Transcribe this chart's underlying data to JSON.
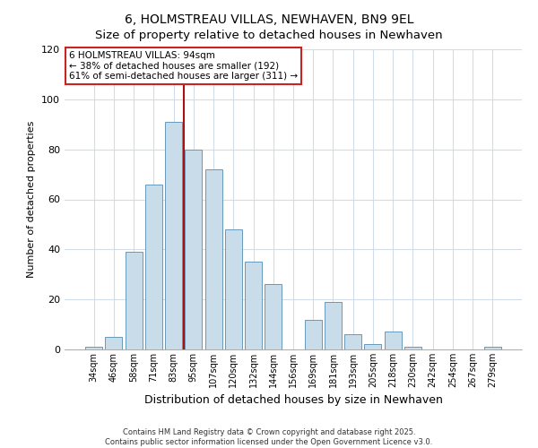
{
  "title": "6, HOLMSTREAU VILLAS, NEWHAVEN, BN9 9EL",
  "subtitle": "Size of property relative to detached houses in Newhaven",
  "xlabel": "Distribution of detached houses by size in Newhaven",
  "ylabel": "Number of detached properties",
  "bar_labels": [
    "34sqm",
    "46sqm",
    "58sqm",
    "71sqm",
    "83sqm",
    "95sqm",
    "107sqm",
    "120sqm",
    "132sqm",
    "144sqm",
    "156sqm",
    "169sqm",
    "181sqm",
    "193sqm",
    "205sqm",
    "218sqm",
    "230sqm",
    "242sqm",
    "254sqm",
    "267sqm",
    "279sqm"
  ],
  "bar_values": [
    1,
    5,
    39,
    66,
    91,
    80,
    72,
    48,
    35,
    26,
    0,
    12,
    19,
    6,
    2,
    7,
    1,
    0,
    0,
    0,
    1
  ],
  "bar_color": "#c9dcea",
  "bar_edge_color": "#6699bb",
  "ylim": [
    0,
    120
  ],
  "yticks": [
    0,
    20,
    40,
    60,
    80,
    100,
    120
  ],
  "vline_x_pos": 4.5,
  "vline_color": "#aa1111",
  "annotation_title": "6 HOLMSTREAU VILLAS: 94sqm",
  "annotation_line1": "← 38% of detached houses are smaller (192)",
  "annotation_line2": "61% of semi-detached houses are larger (311) →",
  "annotation_box_facecolor": "#ffffff",
  "annotation_box_edgecolor": "#cc2222",
  "footer1": "Contains HM Land Registry data © Crown copyright and database right 2025.",
  "footer2": "Contains public sector information licensed under the Open Government Licence v3.0.",
  "fig_facecolor": "#ffffff",
  "ax_facecolor": "#ffffff",
  "grid_color": "#d0dce8",
  "title_fontsize": 10,
  "subtitle_fontsize": 9.5
}
